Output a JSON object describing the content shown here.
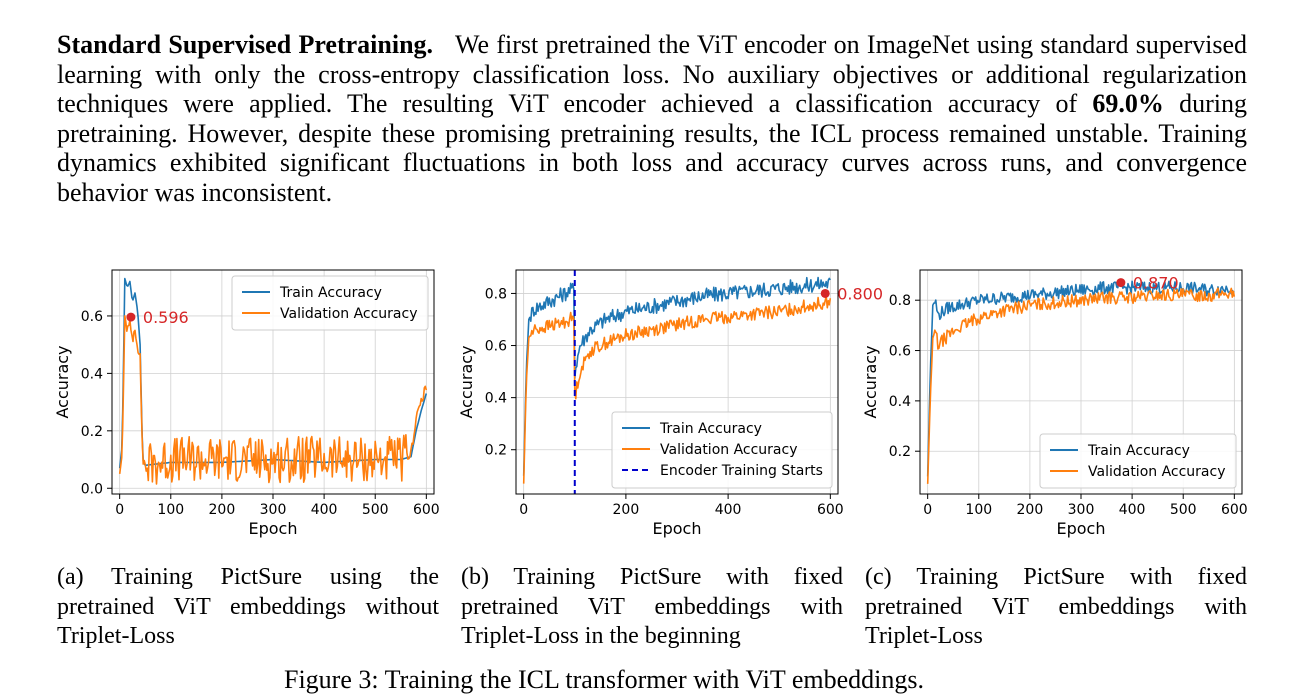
{
  "paragraph": {
    "heading": "Standard Supervised Pretraining.",
    "text_before_bold": "We first pretrained the ViT encoder on ImageNet using standard supervised learning with only the cross-entropy classification loss. No auxiliary objectives or additional regularization techniques were applied. The resulting ViT encoder achieved a classification accuracy of ",
    "bold_value": "69.0%",
    "text_after_bold": " during pretraining. However, despite these promising pretraining results, the ICL process remained unstable. Training dynamics exhibited significant fluctuations in both loss and accuracy curves across runs, and convergence behavior was inconsistent."
  },
  "colors": {
    "train": "#1f77b4",
    "validation": "#ff7f0e",
    "annotation": "#d62728",
    "encoder_line": "#0000cc"
  },
  "captions": {
    "a": "(a) Training PictSure using the pretrained ViT embeddings without Triplet-Loss",
    "b": "(b) Training PictSure with fixed pretrained ViT embeddings with Triplet-Loss in the beginning",
    "c": "(c) Training PictSure with fixed pretrained ViT embeddings with Triplet-Loss"
  },
  "figure_caption": "Figure 3: Training the ICL transformer with ViT embeddings.",
  "chart_data": [
    {
      "type": "line",
      "xlabel": "Epoch",
      "ylabel": "Accuracy",
      "xlim": [
        -15,
        615
      ],
      "ylim": [
        -0.02,
        0.76
      ],
      "xticks": [
        0,
        100,
        200,
        300,
        400,
        500,
        600
      ],
      "yticks": [
        0.0,
        0.2,
        0.4,
        0.6
      ],
      "ytick_labels": [
        "0.0",
        "0.2",
        "0.4",
        "0.6"
      ],
      "grid": true,
      "legend_position": "top-right",
      "series": [
        {
          "name": "Train Accuracy",
          "role": "train",
          "x": [
            0,
            5,
            10,
            15,
            20,
            25,
            30,
            35,
            40,
            45,
            50,
            100,
            200,
            300,
            400,
            500,
            550,
            570,
            580,
            590,
            600
          ],
          "y": [
            0.07,
            0.15,
            0.73,
            0.7,
            0.72,
            0.65,
            0.68,
            0.62,
            0.5,
            0.1,
            0.08,
            0.09,
            0.09,
            0.1,
            0.09,
            0.1,
            0.1,
            0.11,
            0.2,
            0.27,
            0.33
          ]
        },
        {
          "name": "Validation Accuracy",
          "role": "validation",
          "x": [
            0,
            5,
            10,
            15,
            20,
            25,
            30,
            35,
            40,
            45,
            50,
            100,
            200,
            300,
            400,
            500,
            550,
            570,
            580,
            590,
            600
          ],
          "y": [
            0.05,
            0.12,
            0.6,
            0.55,
            0.57,
            0.52,
            0.56,
            0.5,
            0.45,
            0.1,
            0.08,
            0.1,
            0.1,
            0.1,
            0.1,
            0.1,
            0.1,
            0.12,
            0.25,
            0.3,
            0.35
          ],
          "noise": 0.08
        }
      ],
      "annotation": {
        "x": 22,
        "y": 0.596,
        "label": "0.596"
      }
    },
    {
      "type": "line",
      "xlabel": "Epoch",
      "ylabel": "Accuracy",
      "xlim": [
        -15,
        615
      ],
      "ylim": [
        0.03,
        0.89
      ],
      "xticks": [
        0,
        200,
        400,
        600
      ],
      "yticks": [
        0.2,
        0.4,
        0.6,
        0.8
      ],
      "ytick_labels": [
        "0.2",
        "0.4",
        "0.6",
        "0.8"
      ],
      "grid": true,
      "legend_position": "bottom-right",
      "vline": {
        "x": 100,
        "name": "Encoder Training Starts"
      },
      "series": [
        {
          "name": "Train Accuracy",
          "role": "train",
          "x": [
            0,
            5,
            10,
            20,
            40,
            60,
            80,
            99,
            100,
            110,
            130,
            160,
            200,
            250,
            300,
            350,
            400,
            450,
            500,
            550,
            600
          ],
          "y": [
            0.1,
            0.5,
            0.7,
            0.74,
            0.76,
            0.78,
            0.8,
            0.82,
            0.5,
            0.6,
            0.66,
            0.7,
            0.73,
            0.75,
            0.77,
            0.79,
            0.8,
            0.81,
            0.82,
            0.83,
            0.84
          ],
          "noise": 0.03
        },
        {
          "name": "Validation Accuracy",
          "role": "validation",
          "x": [
            0,
            5,
            10,
            20,
            40,
            60,
            80,
            99,
            100,
            110,
            130,
            160,
            200,
            250,
            300,
            350,
            400,
            450,
            500,
            550,
            600
          ],
          "y": [
            0.07,
            0.45,
            0.63,
            0.66,
            0.67,
            0.68,
            0.69,
            0.71,
            0.4,
            0.5,
            0.58,
            0.61,
            0.64,
            0.66,
            0.68,
            0.7,
            0.71,
            0.72,
            0.73,
            0.75,
            0.77
          ],
          "noise": 0.025
        }
      ],
      "annotation": {
        "x": 590,
        "y": 0.8,
        "label": "0.800"
      }
    },
    {
      "type": "line",
      "xlabel": "Epoch",
      "ylabel": "Accuracy",
      "xlim": [
        -15,
        615
      ],
      "ylim": [
        0.03,
        0.92
      ],
      "xticks": [
        0,
        100,
        200,
        300,
        400,
        500,
        600
      ],
      "yticks": [
        0.2,
        0.4,
        0.6,
        0.8
      ],
      "ytick_labels": [
        "0.2",
        "0.4",
        "0.6",
        "0.8"
      ],
      "grid": true,
      "legend_position": "bottom-right",
      "series": [
        {
          "name": "Train Accuracy",
          "role": "train",
          "x": [
            0,
            5,
            10,
            15,
            20,
            40,
            60,
            80,
            100,
            150,
            200,
            250,
            300,
            350,
            400,
            450,
            500,
            550,
            600
          ],
          "y": [
            0.1,
            0.5,
            0.78,
            0.8,
            0.74,
            0.77,
            0.78,
            0.79,
            0.8,
            0.81,
            0.82,
            0.83,
            0.84,
            0.85,
            0.85,
            0.85,
            0.85,
            0.84,
            0.85
          ],
          "noise": 0.025
        },
        {
          "name": "Validation Accuracy",
          "role": "validation",
          "x": [
            0,
            5,
            10,
            15,
            20,
            40,
            60,
            80,
            100,
            150,
            200,
            250,
            300,
            350,
            400,
            450,
            500,
            550,
            600
          ],
          "y": [
            0.07,
            0.4,
            0.65,
            0.68,
            0.62,
            0.66,
            0.69,
            0.71,
            0.73,
            0.76,
            0.78,
            0.79,
            0.8,
            0.81,
            0.81,
            0.82,
            0.82,
            0.82,
            0.83
          ],
          "noise": 0.025
        }
      ],
      "annotation": {
        "x": 378,
        "y": 0.87,
        "label": "0.870"
      }
    }
  ]
}
